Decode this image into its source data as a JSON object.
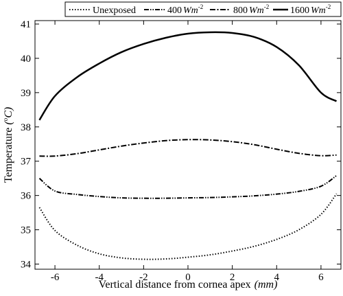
{
  "chart_data": {
    "type": "line",
    "xlabel": "Vertical distance from cornea apex",
    "xlabel_unit": "(mm)",
    "ylabel": "Temperature",
    "ylabel_unit_open": " (",
    "ylabel_unit_deg": "o",
    "ylabel_unit_close": "C)",
    "xlim": [
      -6.9,
      6.9
    ],
    "ylim": [
      33.85,
      41.1
    ],
    "xticks": [
      -6,
      -4,
      -2,
      0,
      2,
      4,
      6
    ],
    "xtick_labels": [
      "-6",
      "-4",
      "-2",
      "0",
      "2",
      "4",
      "6"
    ],
    "yticks": [
      34,
      35,
      36,
      37,
      38,
      39,
      40,
      41
    ],
    "ytick_labels": [
      "34",
      "35",
      "36",
      "37",
      "38",
      "39",
      "40",
      "41"
    ],
    "grid": false,
    "legend_placement": "top, outside plot",
    "legend_unit_main": "Wm",
    "legend_unit_exp": "-2",
    "series": [
      {
        "name": "Unexposed",
        "label_value": "",
        "style": "dotted",
        "x": [
          -6.7,
          -6.0,
          -5.0,
          -4.0,
          -3.0,
          -2.0,
          -1.0,
          0.0,
          1.0,
          2.0,
          3.0,
          4.0,
          5.0,
          6.0,
          6.7
        ],
        "y": [
          35.65,
          34.98,
          34.55,
          34.3,
          34.18,
          34.14,
          34.15,
          34.2,
          34.27,
          34.38,
          34.52,
          34.72,
          35.0,
          35.45,
          36.05
        ]
      },
      {
        "name": "",
        "label_value": "400",
        "style": "dash-dot-dot",
        "x": [
          -6.7,
          -6.0,
          -5.0,
          -4.0,
          -3.0,
          -2.0,
          -1.0,
          0.0,
          1.0,
          2.0,
          3.0,
          4.0,
          5.0,
          6.0,
          6.7
        ],
        "y": [
          36.5,
          36.13,
          36.03,
          35.97,
          35.93,
          35.92,
          35.92,
          35.93,
          35.94,
          35.96,
          35.99,
          36.04,
          36.12,
          36.27,
          36.58
        ]
      },
      {
        "name": "",
        "label_value": "800",
        "style": "dash-dot",
        "x": [
          -6.7,
          -6.0,
          -5.0,
          -4.0,
          -3.0,
          -2.0,
          -1.0,
          0.0,
          1.0,
          2.0,
          3.0,
          4.0,
          5.0,
          6.0,
          6.7
        ],
        "y": [
          37.15,
          37.15,
          37.22,
          37.33,
          37.44,
          37.53,
          37.6,
          37.63,
          37.62,
          37.57,
          37.48,
          37.35,
          37.23,
          37.16,
          37.18
        ]
      },
      {
        "name": "",
        "label_value": "1600",
        "style": "solid",
        "x": [
          -6.7,
          -6.0,
          -5.0,
          -4.0,
          -3.0,
          -2.0,
          -1.0,
          0.0,
          1.0,
          2.0,
          3.0,
          4.0,
          5.0,
          6.0,
          6.7
        ],
        "y": [
          38.2,
          38.9,
          39.45,
          39.85,
          40.18,
          40.42,
          40.6,
          40.72,
          40.76,
          40.74,
          40.62,
          40.33,
          39.8,
          39.0,
          38.75
        ]
      }
    ]
  }
}
